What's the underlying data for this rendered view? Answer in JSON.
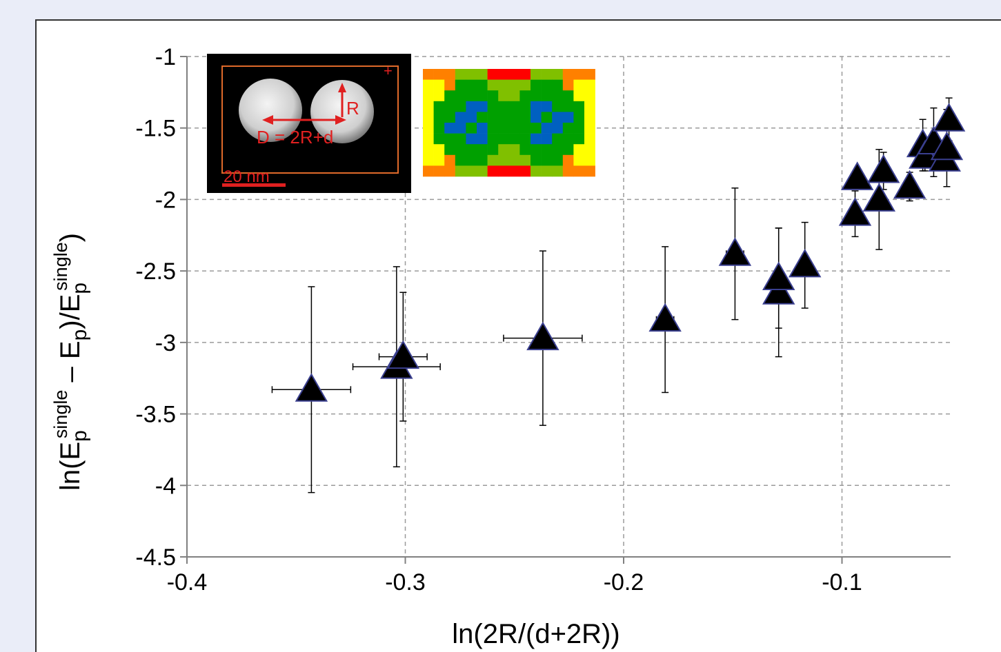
{
  "chart_data": {
    "type": "scatter",
    "title": "",
    "xlabel": "ln(2R/(d+2R))",
    "ylabel": {
      "parts": [
        "ln(E",
        "p",
        "single",
        " – E",
        "p",
        ")/E",
        "p",
        "single",
        ")"
      ]
    },
    "xlim": [
      -0.4,
      -0.05
    ],
    "ylim": [
      -4.5,
      -1
    ],
    "x_ticks": [
      -0.4,
      -0.3,
      -0.2,
      -0.1
    ],
    "x_tick_labels": [
      "-0.4",
      "-0.3",
      "-0.2",
      "-0.1"
    ],
    "y_ticks": [
      -1,
      -1.5,
      -2,
      -2.5,
      -3,
      -3.5,
      -4,
      -4.5
    ],
    "y_tick_labels": [
      "-1",
      "-1.5",
      "-2",
      "-2.5",
      "-3",
      "-3.5",
      "-4",
      "-4.5"
    ],
    "grid": true,
    "marker": {
      "shape": "triangle",
      "fill": "#000000",
      "edge": "#3a3f8f"
    },
    "points": [
      {
        "x": -0.343,
        "y": -3.33,
        "yerr": 0.72,
        "xerr": 0.018
      },
      {
        "x": -0.304,
        "y": -3.17,
        "yerr": 0.7,
        "xerr": 0.02
      },
      {
        "x": -0.301,
        "y": -3.1,
        "yerr": 0.45,
        "xerr": 0.011
      },
      {
        "x": -0.237,
        "y": -2.97,
        "yerr": 0.61,
        "xerr": 0.018
      },
      {
        "x": -0.181,
        "y": -2.84,
        "yerr": 0.51,
        "xerr": 0.004
      },
      {
        "x": -0.149,
        "y": -2.38,
        "yerr": 0.46,
        "xerr": 0.004
      },
      {
        "x": -0.129,
        "y": -2.65,
        "yerr": 0.45
      },
      {
        "x": -0.129,
        "y": -2.55,
        "yerr": 0.35
      },
      {
        "x": -0.117,
        "y": -2.46,
        "yerr": 0.3
      },
      {
        "x": -0.094,
        "y": -2.1,
        "yerr": 0.16
      },
      {
        "x": -0.093,
        "y": -1.85,
        "yerr": 0.07
      },
      {
        "x": -0.083,
        "y": -2.0,
        "yerr": 0.35
      },
      {
        "x": -0.081,
        "y": -1.8,
        "yerr": 0.13
      },
      {
        "x": -0.069,
        "y": -1.91,
        "yerr": 0.1
      },
      {
        "x": -0.063,
        "y": -1.62,
        "yerr": 0.18
      },
      {
        "x": -0.062,
        "y": -1.7,
        "yerr": 0.1
      },
      {
        "x": -0.058,
        "y": -1.6,
        "yerr": 0.24
      },
      {
        "x": -0.053,
        "y": -1.72,
        "yerr": 0.06
      },
      {
        "x": -0.052,
        "y": -1.64,
        "yerr": 0.27
      },
      {
        "x": -0.051,
        "y": -1.44,
        "yerr": 0.15
      }
    ]
  },
  "insets": {
    "tem_image": {
      "annotation_r": "R",
      "annotation_d": "D = 2R+d",
      "scale_bar": "20 nm"
    },
    "eels_map": {
      "colormap": [
        "#ff0000",
        "#ff8000",
        "#ffff00",
        "#80c000",
        "#00a000",
        "#0060c0"
      ]
    }
  }
}
